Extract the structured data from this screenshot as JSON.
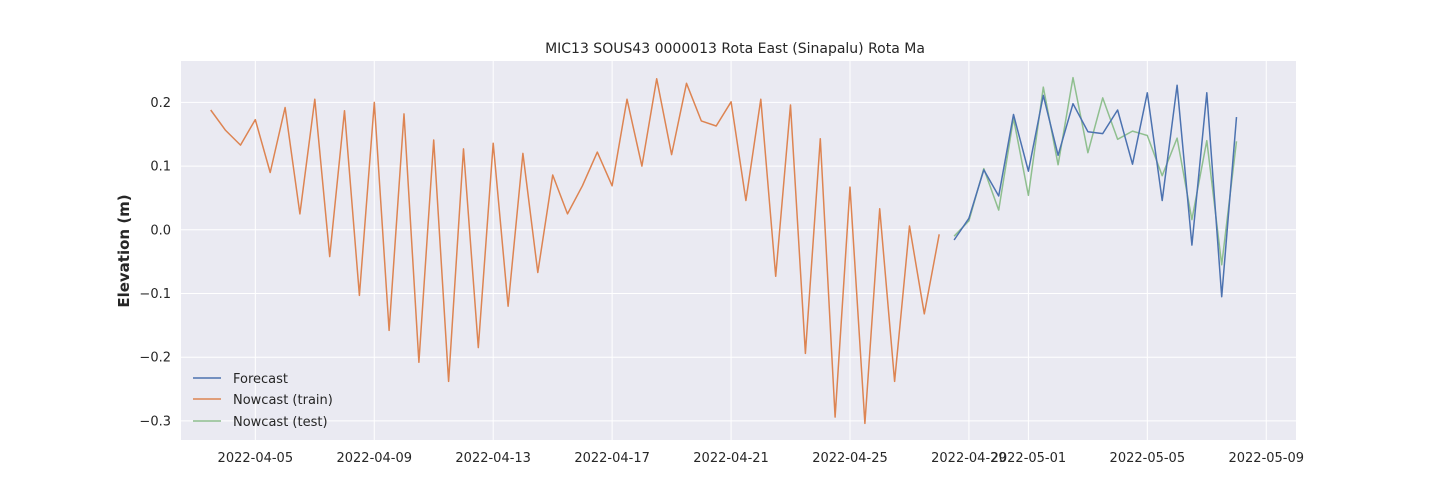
{
  "chart_data": {
    "type": "line",
    "title": "MIC13 SOUS43 0000013 Rota East (Sinapalu) Rota Ma",
    "xlabel": "",
    "ylabel": "Elevation (m)",
    "x_axis": {
      "type": "date",
      "range": [
        "2022-04-02T12:00",
        "2022-05-10T00:00"
      ],
      "ticks": [
        "2022-04-05",
        "2022-04-09",
        "2022-04-13",
        "2022-04-17",
        "2022-04-21",
        "2022-04-25",
        "2022-04-29",
        "2022-05-01",
        "2022-05-05",
        "2022-05-09"
      ]
    },
    "y_axis": {
      "range": [
        -0.33,
        0.265
      ],
      "ticks": [
        0.2,
        0.1,
        0.0,
        -0.1,
        -0.2,
        -0.3
      ],
      "tick_labels": [
        "0.2",
        "0.1",
        "0.0",
        "−0.1",
        "−0.2",
        "−0.3"
      ]
    },
    "grid": true,
    "legend": {
      "position": "lower-left"
    },
    "series": [
      {
        "name": "Forecast",
        "color": "#4c72b0",
        "start": "2022-04-28T12:00",
        "step_hours": 12,
        "values": [
          -0.016,
          0.018,
          0.094,
          0.053,
          0.181,
          0.092,
          0.211,
          0.117,
          0.198,
          0.154,
          0.151,
          0.188,
          0.103,
          0.215,
          0.046,
          0.227,
          -0.024,
          0.215,
          -0.105,
          0.177
        ]
      },
      {
        "name": "Nowcast (train)",
        "color": "#dd8452",
        "start": "2022-04-03T12:00",
        "step_hours": 12,
        "values": [
          0.188,
          0.156,
          0.133,
          0.173,
          0.09,
          0.192,
          0.025,
          0.205,
          -0.042,
          0.187,
          -0.103,
          0.2,
          -0.158,
          0.182,
          -0.208,
          0.141,
          -0.238,
          0.127,
          -0.185,
          0.136,
          -0.12,
          0.12,
          -0.067,
          0.086,
          0.025,
          0.069,
          0.122,
          0.069,
          0.205,
          0.1,
          0.237,
          0.118,
          0.23,
          0.171,
          0.163,
          0.201,
          0.046,
          0.205,
          -0.073,
          0.196,
          -0.194,
          0.143,
          -0.294,
          0.067,
          -0.304,
          0.033,
          -0.238,
          0.006,
          -0.132,
          -0.007
        ]
      },
      {
        "name": "Nowcast (test)",
        "color": "#8fbf8f",
        "start": "2022-04-28T12:00",
        "step_hours": 12,
        "values": [
          -0.01,
          0.014,
          0.096,
          0.031,
          0.175,
          0.054,
          0.224,
          0.102,
          0.239,
          0.121,
          0.207,
          0.142,
          0.155,
          0.148,
          0.085,
          0.144,
          0.016,
          0.14,
          -0.055,
          0.139
        ]
      }
    ]
  }
}
